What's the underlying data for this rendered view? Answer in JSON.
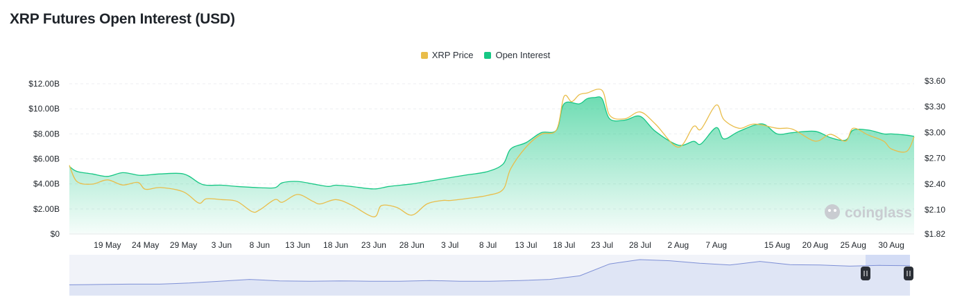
{
  "title": "XRP Futures Open Interest (USD)",
  "legend": [
    {
      "label": "XRP Price",
      "color": "#e9bd4a"
    },
    {
      "label": "Open Interest",
      "color": "#16c784"
    }
  ],
  "watermark": "coinglass",
  "chart_data": {
    "type": "area",
    "title": "XRP Futures Open Interest (USD)",
    "x_tick_labels": [
      "19 May",
      "24 May",
      "29 May",
      "3 Jun",
      "8 Jun",
      "13 Jun",
      "18 Jun",
      "23 Jun",
      "28 Jun",
      "3 Jul",
      "8 Jul",
      "13 Jul",
      "18 Jul",
      "23 Jul",
      "28 Jul",
      "2 Aug",
      "7 Aug",
      "15 Aug",
      "20 Aug",
      "25 Aug",
      "30 Aug"
    ],
    "y_left_ticks": [
      "$0",
      "$2.00B",
      "$4.00B",
      "$6.00B",
      "$8.00B",
      "$10.00B",
      "$12.00B"
    ],
    "y_left_range": [
      0,
      12.5
    ],
    "y_right_ticks": [
      "$1.82",
      "$2.10",
      "$2.40",
      "$2.70",
      "$3.00",
      "$3.30",
      "$3.60"
    ],
    "y_right_range": [
      1.82,
      3.64
    ],
    "grid": true,
    "legend_position": "top-center",
    "series": [
      {
        "name": "Open Interest",
        "axis": "left",
        "color": "#16c784",
        "x": [
          "14 May",
          "15 May",
          "17 May",
          "19 May",
          "21 May",
          "23 May",
          "24 May",
          "26 May",
          "29 May",
          "31 May",
          "1 Jun",
          "3 Jun",
          "5 Jun",
          "8 Jun",
          "10 Jun",
          "11 Jun",
          "13 Jun",
          "15 Jun",
          "17 Jun",
          "18 Jun",
          "20 Jun",
          "23 Jun",
          "25 Jun",
          "28 Jun",
          "30 Jun",
          "3 Jul",
          "5 Jul",
          "8 Jul",
          "10 Jul",
          "11 Jul",
          "13 Jul",
          "15 Jul",
          "17 Jul",
          "18 Jul",
          "20 Jul",
          "21 Jul",
          "22 Jul",
          "23 Jul",
          "24 Jul",
          "26 Jul",
          "28 Jul",
          "30 Jul",
          "2 Aug",
          "4 Aug",
          "5 Aug",
          "7 Aug",
          "8 Aug",
          "10 Aug",
          "13 Aug",
          "15 Aug",
          "17 Aug",
          "20 Aug",
          "22 Aug",
          "24 Aug",
          "25 Aug",
          "27 Aug",
          "29 Aug",
          "30 Aug",
          "1 Sep",
          "2 Sep"
        ],
        "values": [
          5.4,
          5.0,
          4.8,
          4.6,
          4.9,
          4.7,
          4.7,
          4.8,
          4.8,
          4.1,
          3.9,
          3.9,
          3.8,
          3.7,
          3.7,
          4.1,
          4.2,
          4.0,
          3.8,
          3.9,
          3.8,
          3.6,
          3.8,
          4.0,
          4.2,
          4.5,
          4.7,
          5.0,
          5.6,
          6.8,
          7.3,
          8.1,
          8.3,
          10.4,
          10.4,
          10.8,
          10.9,
          10.8,
          9.2,
          9.1,
          9.4,
          8.2,
          7.1,
          7.4,
          7.2,
          8.5,
          7.6,
          8.2,
          8.8,
          8.0,
          8.1,
          8.2,
          7.7,
          7.5,
          8.3,
          8.3,
          8.0,
          8.0,
          7.9,
          7.8
        ]
      },
      {
        "name": "XRP Price",
        "axis": "right",
        "color": "#e9bd4a",
        "x": [
          "14 May",
          "15 May",
          "17 May",
          "19 May",
          "21 May",
          "23 May",
          "24 May",
          "26 May",
          "29 May",
          "31 May",
          "1 Jun",
          "3 Jun",
          "5 Jun",
          "7 Jun",
          "8 Jun",
          "10 Jun",
          "11 Jun",
          "13 Jun",
          "15 Jun",
          "16 Jun",
          "18 Jun",
          "20 Jun",
          "23 Jun",
          "24 Jun",
          "26 Jun",
          "28 Jun",
          "30 Jun",
          "2 Jul",
          "3 Jul",
          "5 Jul",
          "8 Jul",
          "10 Jul",
          "11 Jul",
          "13 Jul",
          "15 Jul",
          "17 Jul",
          "18 Jul",
          "19 Jul",
          "20 Jul",
          "21 Jul",
          "23 Jul",
          "24 Jul",
          "26 Jul",
          "28 Jul",
          "30 Jul",
          "2 Aug",
          "4 Aug",
          "5 Aug",
          "7 Aug",
          "8 Aug",
          "10 Aug",
          "12 Aug",
          "15 Aug",
          "17 Aug",
          "20 Aug",
          "22 Aug",
          "24 Aug",
          "25 Aug",
          "27 Aug",
          "29 Aug",
          "30 Aug",
          "1 Sep",
          "2 Sep"
        ],
        "values": [
          2.62,
          2.43,
          2.4,
          2.45,
          2.39,
          2.42,
          2.34,
          2.36,
          2.31,
          2.18,
          2.23,
          2.22,
          2.2,
          2.08,
          2.1,
          2.22,
          2.19,
          2.28,
          2.2,
          2.17,
          2.22,
          2.16,
          2.02,
          2.15,
          2.13,
          2.04,
          2.17,
          2.21,
          2.21,
          2.23,
          2.27,
          2.34,
          2.58,
          2.83,
          2.98,
          3.03,
          3.42,
          3.36,
          3.44,
          3.46,
          3.49,
          3.2,
          3.16,
          3.24,
          3.1,
          2.83,
          3.07,
          3.04,
          3.32,
          3.15,
          3.05,
          3.1,
          3.05,
          3.04,
          2.9,
          2.98,
          2.9,
          3.05,
          2.97,
          2.9,
          2.81,
          2.78,
          2.95
        ]
      }
    ],
    "overview_series": [
      0.3,
      0.31,
      0.32,
      0.32,
      0.35,
      0.4,
      0.45,
      0.41,
      0.4,
      0.41,
      0.4,
      0.4,
      0.42,
      0.4,
      0.4,
      0.42,
      0.45,
      0.55,
      0.88,
      1.0,
      0.97,
      0.9,
      0.85,
      0.95,
      0.86,
      0.85,
      0.82,
      0.84,
      0.83
    ]
  }
}
